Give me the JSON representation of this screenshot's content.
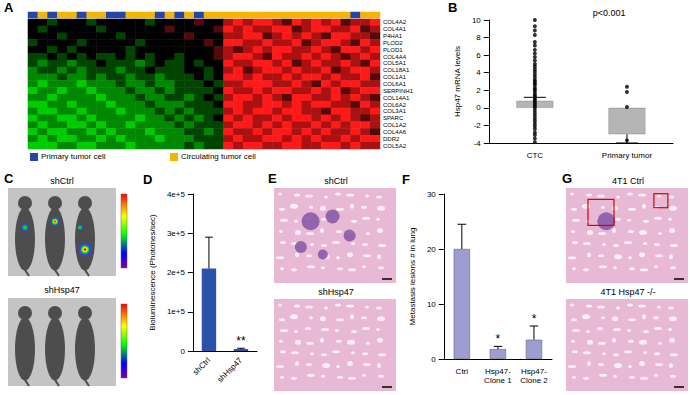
{
  "chart_data": [
    {
      "panel": "A",
      "type": "heatmap",
      "rows": [
        "COL4A2",
        "COL4A1",
        "P4HA1",
        "PLOD2",
        "PLOD1",
        "COL4A4",
        "COL5A1",
        "COL18A1",
        "COL1A1",
        "COL6A1",
        "SERPINH1",
        "COL14A1",
        "COL6A2",
        "COL3A1",
        "SPARC",
        "COL1A2",
        "COL4A6",
        "DDR2",
        "COL5A2"
      ],
      "cells": [
        [
          0,
          0,
          -1,
          0,
          0,
          0,
          -1,
          0,
          0,
          0,
          0,
          0,
          -1,
          0,
          0,
          0,
          0,
          1,
          0,
          0,
          2,
          3,
          2,
          3,
          3,
          2,
          1,
          3,
          2,
          3,
          2,
          3,
          1,
          2,
          2,
          3
        ],
        [
          0,
          -1,
          0,
          0,
          0,
          0,
          0,
          -1,
          0,
          0,
          0,
          0,
          0,
          0,
          1,
          0,
          0,
          0,
          0,
          1,
          3,
          2,
          3,
          2,
          2,
          3,
          3,
          1,
          2,
          3,
          3,
          2,
          2,
          3,
          1,
          2
        ],
        [
          0,
          0,
          0,
          -1,
          0,
          0,
          0,
          0,
          0,
          -1,
          0,
          0,
          0,
          0,
          0,
          0,
          1,
          0,
          0,
          0,
          2,
          2,
          3,
          3,
          1,
          2,
          3,
          2,
          3,
          2,
          1,
          3,
          3,
          2,
          2,
          1
        ],
        [
          -1,
          0,
          0,
          0,
          0,
          -1,
          0,
          0,
          0,
          0,
          0,
          -1,
          0,
          0,
          0,
          0,
          0,
          0,
          1,
          0,
          3,
          3,
          2,
          2,
          3,
          2,
          2,
          3,
          1,
          2,
          3,
          3,
          2,
          1,
          3,
          2
        ],
        [
          0,
          0,
          -1,
          0,
          -1,
          0,
          0,
          0,
          0,
          0,
          -1,
          0,
          0,
          0,
          0,
          0,
          0,
          0,
          0,
          1,
          2,
          1,
          2,
          3,
          2,
          3,
          3,
          2,
          2,
          3,
          2,
          1,
          3,
          3,
          2,
          3
        ],
        [
          -1,
          -1,
          0,
          -1,
          0,
          -1,
          0,
          -1,
          -1,
          0,
          -1,
          0,
          -1,
          0,
          0,
          -1,
          0,
          0,
          0,
          1,
          2,
          3,
          3,
          2,
          1,
          3,
          2,
          2,
          3,
          2,
          3,
          2,
          1,
          2,
          3,
          2
        ],
        [
          -1,
          -2,
          -1,
          -1,
          -2,
          -1,
          -1,
          0,
          -1,
          -1,
          -1,
          -2,
          -1,
          0,
          -1,
          -1,
          0,
          -1,
          0,
          0,
          3,
          2,
          2,
          3,
          3,
          2,
          3,
          1,
          2,
          3,
          2,
          2,
          3,
          2,
          1,
          3
        ],
        [
          -2,
          -1,
          -1,
          -2,
          -1,
          -2,
          -1,
          -1,
          -1,
          -2,
          -1,
          -1,
          0,
          -1,
          -1,
          -1,
          0,
          0,
          -1,
          0,
          2,
          3,
          1,
          2,
          3,
          3,
          2,
          3,
          2,
          2,
          3,
          1,
          2,
          3,
          3,
          2
        ],
        [
          -2,
          -2,
          -2,
          -1,
          -2,
          -2,
          -1,
          -2,
          -1,
          -1,
          -2,
          -1,
          -1,
          -2,
          -1,
          -1,
          -1,
          0,
          -1,
          0,
          3,
          3,
          2,
          3,
          2,
          2,
          3,
          2,
          3,
          3,
          2,
          3,
          2,
          2,
          3,
          1
        ],
        [
          -2,
          -3,
          -2,
          -2,
          -2,
          -3,
          -2,
          -2,
          -2,
          -1,
          -2,
          -2,
          -1,
          -2,
          -2,
          -1,
          -1,
          -1,
          0,
          -1,
          2,
          2,
          3,
          3,
          3,
          2,
          2,
          3,
          2,
          1,
          3,
          2,
          3,
          3,
          2,
          2
        ],
        [
          -3,
          -2,
          -2,
          -3,
          -2,
          -2,
          -3,
          -2,
          -2,
          -2,
          -1,
          -2,
          -2,
          -1,
          -2,
          -1,
          -1,
          -1,
          -1,
          0,
          3,
          2,
          2,
          3,
          2,
          3,
          3,
          2,
          2,
          3,
          2,
          3,
          1,
          2,
          3,
          3
        ],
        [
          -2,
          -2,
          -3,
          -2,
          -2,
          -2,
          -2,
          -3,
          -2,
          -2,
          -2,
          -1,
          -2,
          -2,
          -1,
          -1,
          -2,
          -1,
          0,
          -1,
          2,
          3,
          3,
          2,
          3,
          2,
          1,
          3,
          3,
          2,
          2,
          3,
          2,
          3,
          2,
          1
        ],
        [
          -3,
          -3,
          -2,
          -2,
          -3,
          -2,
          -2,
          -2,
          -3,
          -2,
          -2,
          -2,
          -1,
          -2,
          -2,
          -2,
          -1,
          -1,
          -1,
          0,
          3,
          3,
          2,
          2,
          3,
          3,
          2,
          3,
          2,
          3,
          3,
          2,
          2,
          1,
          3,
          2
        ],
        [
          -2,
          -3,
          -3,
          -2,
          -2,
          -3,
          -2,
          -2,
          -2,
          -3,
          -2,
          -2,
          -2,
          -1,
          -2,
          -1,
          -2,
          -1,
          -1,
          -1,
          2,
          3,
          2,
          3,
          3,
          2,
          3,
          3,
          2,
          2,
          1,
          3,
          3,
          2,
          2,
          3
        ],
        [
          -3,
          -2,
          -2,
          -3,
          -3,
          -2,
          -3,
          -2,
          -2,
          -2,
          -2,
          -3,
          -2,
          -2,
          -1,
          -2,
          -1,
          -2,
          -1,
          0,
          3,
          2,
          3,
          2,
          2,
          3,
          2,
          3,
          3,
          2,
          3,
          2,
          3,
          2,
          1,
          2
        ],
        [
          -2,
          -3,
          -2,
          -2,
          -3,
          -3,
          -2,
          -3,
          -2,
          -2,
          -3,
          -2,
          -2,
          -2,
          -2,
          -1,
          -2,
          -1,
          -1,
          -1,
          2,
          3,
          3,
          2,
          3,
          2,
          3,
          2,
          2,
          3,
          2,
          3,
          2,
          3,
          3,
          2
        ],
        [
          -3,
          -2,
          -3,
          -3,
          -2,
          -2,
          -3,
          -2,
          -3,
          -2,
          -2,
          -2,
          -3,
          -2,
          -2,
          -2,
          -1,
          -1,
          -2,
          -1,
          3,
          2,
          2,
          3,
          2,
          3,
          3,
          2,
          3,
          2,
          3,
          2,
          2,
          3,
          2,
          1
        ],
        [
          -2,
          -3,
          -2,
          -3,
          -3,
          -2,
          -2,
          -3,
          -2,
          -3,
          -2,
          -2,
          -2,
          -3,
          -2,
          -2,
          -2,
          -1,
          -1,
          -1,
          2,
          3,
          2,
          2,
          3,
          3,
          2,
          3,
          2,
          3,
          2,
          2,
          3,
          2,
          3,
          3
        ],
        [
          -3,
          -3,
          -3,
          -2,
          -2,
          -3,
          -3,
          -2,
          -2,
          -2,
          -3,
          -2,
          -2,
          -2,
          -2,
          -2,
          -1,
          -2,
          -1,
          -1,
          3,
          2,
          3,
          3,
          2,
          2,
          3,
          3,
          2,
          2,
          3,
          3,
          2,
          3,
          2,
          2
        ]
      ],
      "color_range": [
        -3,
        3
      ],
      "sample_groups": [
        0,
        1,
        0,
        1,
        1,
        0,
        1,
        1,
        0,
        0,
        1,
        1,
        1,
        0,
        1,
        0,
        1,
        0,
        1,
        1,
        1,
        1,
        1,
        1,
        1,
        1,
        1,
        1,
        1,
        1,
        1,
        1,
        1,
        0,
        1,
        1
      ],
      "groups": [
        {
          "name": "Primary tumor cell",
          "color": "#2346a8"
        },
        {
          "name": "Circulating tumor cell",
          "color": "#f5b400"
        }
      ],
      "tick_labels": "y"
    },
    {
      "panel": "B",
      "type": "bar",
      "categories": [
        "CTC",
        "Primary tumor"
      ],
      "values": [
        0.8,
        -3.0
      ],
      "error": [
        0.4,
        1.0
      ],
      "color": "#b5b5b5",
      "points": [
        [
          10,
          9.3,
          8.8,
          8.3,
          7.5,
          7.1,
          6.6,
          6.2,
          5.8,
          5.4,
          5,
          4.7,
          4.4,
          4.1,
          3.8,
          3.5,
          3.2,
          3,
          2.8,
          2.6,
          2.3,
          2.1,
          1.9,
          1.6,
          1.4,
          1.2,
          1,
          0.8,
          0.6,
          0.4,
          0.2,
          0,
          -0.3,
          -0.6,
          -0.9,
          -1.2,
          -1.5,
          -1.8,
          -2.1,
          -2.4,
          -2.8,
          -3.1,
          -3.5,
          -3.9
        ],
        [
          2.4,
          1.8,
          0.1,
          -3.7
        ]
      ],
      "ylim": [
        -4,
        10
      ],
      "yticks": [
        -4,
        -2,
        0,
        2,
        4,
        6,
        8,
        10
      ],
      "ylabel": "Hsp47 mRNA levels",
      "annotation": "p<0.001"
    },
    {
      "panel": "D",
      "type": "bar",
      "categories": [
        "shCtrl",
        "shHsp47"
      ],
      "values": [
        210000,
        5000
      ],
      "error": [
        80000,
        2000
      ],
      "color": "#2a52a8",
      "annotations": [
        {
          "category": "shHsp47",
          "text": "**"
        }
      ],
      "ylim": [
        0,
        400000
      ],
      "yticks": [
        0,
        {
          "value": 100000,
          "label": "1e+5"
        },
        {
          "value": 200000,
          "label": "2e+5"
        },
        {
          "value": 300000,
          "label": "3e+5"
        },
        {
          "value": 400000,
          "label": "4e+5"
        }
      ],
      "ylabel": "Bioluminescence (Photones/sec)"
    },
    {
      "panel": "F",
      "type": "bar",
      "categories": [
        "Ctrl",
        "Hsp47-\nClone 1",
        "Hsp47-\nClone 2"
      ],
      "values": [
        20,
        1.8,
        3.5
      ],
      "error": [
        4.5,
        0.5,
        2.5
      ],
      "color": "#9d9dd2",
      "annotations": [
        {
          "category": "Hsp47-\nClone 1",
          "text": "*"
        },
        {
          "category": "Hsp47-\nClone 2",
          "text": "*"
        }
      ],
      "ylim": [
        0,
        30
      ],
      "yticks": [
        0,
        10,
        20,
        30
      ],
      "ylabel": "Metastasis lesions # in lung"
    }
  ],
  "images": [
    {
      "panel": "C",
      "labels": [
        "shCtrl",
        "shHsp47"
      ]
    },
    {
      "panel": "E",
      "labels": [
        "shCtrl",
        "shHsp47"
      ]
    },
    {
      "panel": "G",
      "labels": [
        "4T1 Ctrl",
        "4T1 Hsp47 -/-"
      ]
    }
  ]
}
